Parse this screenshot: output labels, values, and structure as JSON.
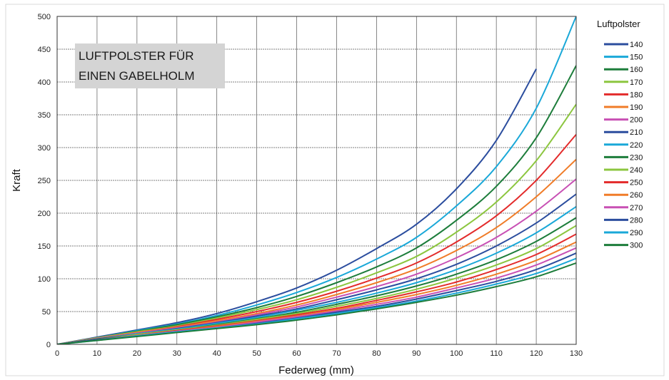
{
  "chart_data": {
    "type": "line",
    "title": "LUFTPOLSTER FÜR EINEN GABELHOLM",
    "annotation_lines": [
      "LUFTPOLSTER FÜR",
      "EINEN GABELHOLM"
    ],
    "xlabel": "Federweg (mm)",
    "ylabel": "Kraft",
    "legend_title": "Luftpolster",
    "legend_position": "right",
    "grid": true,
    "xlim": [
      0,
      130
    ],
    "ylim": [
      0,
      500
    ],
    "xticks": [
      0,
      10,
      20,
      30,
      40,
      50,
      60,
      70,
      80,
      90,
      100,
      110,
      120,
      130
    ],
    "yticks": [
      0,
      50,
      100,
      150,
      200,
      250,
      300,
      350,
      400,
      450,
      500
    ],
    "x": [
      0,
      10,
      20,
      30,
      40,
      50,
      60,
      70,
      80,
      90,
      100,
      110,
      120,
      130
    ],
    "series": [
      {
        "name": "140",
        "color": "#2b4d9e",
        "values": [
          0,
          11,
          22,
          33,
          47,
          65,
          86,
          113,
          146,
          183,
          237,
          311,
          420,
          null
        ]
      },
      {
        "name": "150",
        "color": "#1aa8d8",
        "values": [
          0,
          10,
          21,
          31,
          44,
          60,
          79,
          102,
          130,
          163,
          211,
          271,
          360,
          500
        ]
      },
      {
        "name": "160",
        "color": "#1d7d3b",
        "values": [
          0,
          10,
          20,
          30,
          42,
          56,
          73,
          94,
          118,
          147,
          189,
          241,
          315,
          425
        ]
      },
      {
        "name": "170",
        "color": "#8cc63f",
        "values": [
          0,
          10,
          19,
          28,
          40,
          53,
          68,
          87,
          109,
          134,
          171,
          217,
          280,
          366
        ]
      },
      {
        "name": "180",
        "color": "#e32b2b",
        "values": [
          0,
          9,
          18,
          27,
          38,
          50,
          64,
          81,
          101,
          124,
          156,
          196,
          250,
          320
        ]
      },
      {
        "name": "190",
        "color": "#f07c28",
        "values": [
          0,
          9,
          18,
          26,
          36,
          47,
          60,
          76,
          94,
          115,
          143,
          178,
          225,
          282
        ]
      },
      {
        "name": "200",
        "color": "#c850b4",
        "values": [
          0,
          9,
          17,
          25,
          34,
          45,
          57,
          72,
          88,
          107,
          132,
          163,
          203,
          252
        ]
      },
      {
        "name": "210",
        "color": "#2b4d9e",
        "values": [
          0,
          8,
          16,
          24,
          33,
          43,
          54,
          68,
          83,
          100,
          122,
          150,
          185,
          229
        ]
      },
      {
        "name": "220",
        "color": "#1aa8d8",
        "values": [
          0,
          8,
          16,
          23,
          32,
          41,
          52,
          64,
          78,
          94,
          114,
          139,
          170,
          210
        ]
      },
      {
        "name": "230",
        "color": "#1d7d3b",
        "values": [
          0,
          8,
          15,
          22,
          30,
          39,
          49,
          61,
          74,
          89,
          107,
          129,
          157,
          193
        ]
      },
      {
        "name": "240",
        "color": "#8cc63f",
        "values": [
          0,
          7,
          15,
          22,
          29,
          38,
          47,
          58,
          70,
          84,
          101,
          121,
          146,
          181
        ]
      },
      {
        "name": "250",
        "color": "#e32b2b",
        "values": [
          0,
          7,
          14,
          21,
          28,
          36,
          45,
          55,
          67,
          80,
          95,
          114,
          137,
          168
        ]
      },
      {
        "name": "260",
        "color": "#f07c28",
        "values": [
          0,
          7,
          14,
          20,
          27,
          35,
          43,
          53,
          64,
          76,
          90,
          107,
          128,
          156
        ]
      },
      {
        "name": "270",
        "color": "#c850b4",
        "values": [
          0,
          7,
          13,
          20,
          26,
          34,
          42,
          51,
          61,
          72,
          86,
          101,
          121,
          147
        ]
      },
      {
        "name": "280",
        "color": "#2b4d9e",
        "values": [
          0,
          7,
          13,
          19,
          25,
          32,
          40,
          49,
          58,
          69,
          82,
          96,
          114,
          139
        ]
      },
      {
        "name": "290",
        "color": "#1aa8d8",
        "values": [
          0,
          6,
          13,
          19,
          25,
          31,
          39,
          47,
          56,
          66,
          78,
          92,
          108,
          131
        ]
      },
      {
        "name": "300",
        "color": "#1d7d3b",
        "values": [
          0,
          6,
          12,
          18,
          24,
          30,
          37,
          45,
          54,
          64,
          75,
          88,
          103,
          124
        ]
      }
    ]
  }
}
